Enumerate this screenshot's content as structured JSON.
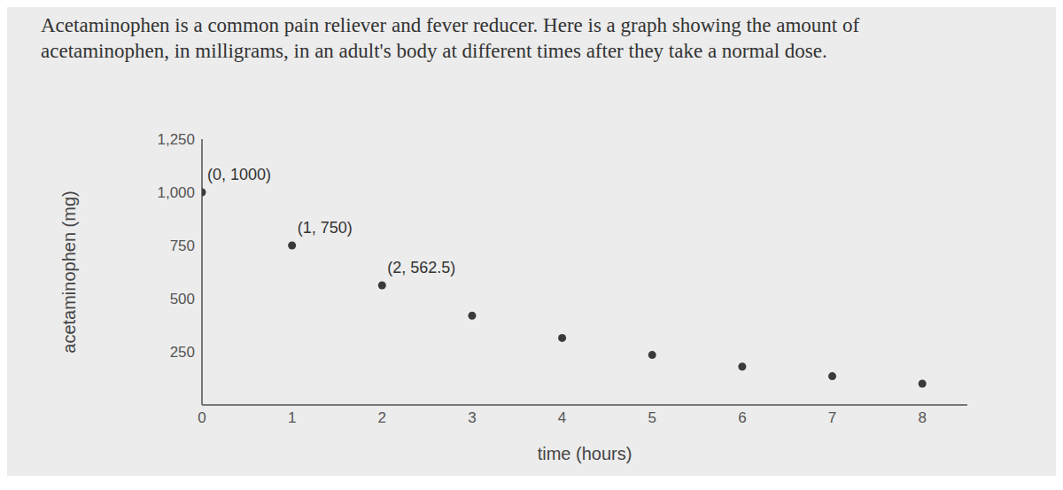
{
  "chart_data": {
    "type": "scatter",
    "title": "Acetaminophen is a common pain reliever and fever reducer. Here is a graph showing the amount of acetaminophen, in milligrams, in an adult's body at different times after they take a normal dose.",
    "x_label": "time (hours)",
    "y_label": "acetaminophen (mg)",
    "x": [
      0,
      1,
      2,
      3,
      4,
      5,
      6,
      7,
      8
    ],
    "values": [
      1000,
      750,
      562.5,
      420,
      315,
      235,
      180,
      135,
      100
    ],
    "color": "#3a3a3a",
    "marker": "circle",
    "xlim": [
      0,
      8.5
    ],
    "ylim": [
      0,
      1250
    ],
    "xticks": [
      0,
      1,
      2,
      3,
      4,
      5,
      6,
      7,
      8
    ],
    "yticks": [
      250,
      500,
      750,
      {
        "value": 1000,
        "label": "1,000"
      },
      {
        "value": 1250,
        "label": "1,250"
      }
    ],
    "grid": false,
    "annotations": [
      {
        "text": "(0, 1000)",
        "x": 0,
        "y": 1000
      },
      {
        "text": "(1, 750)",
        "x": 1,
        "y": 750
      },
      {
        "text": "(2, 562.5)",
        "x": 2,
        "y": 562.5
      }
    ]
  }
}
